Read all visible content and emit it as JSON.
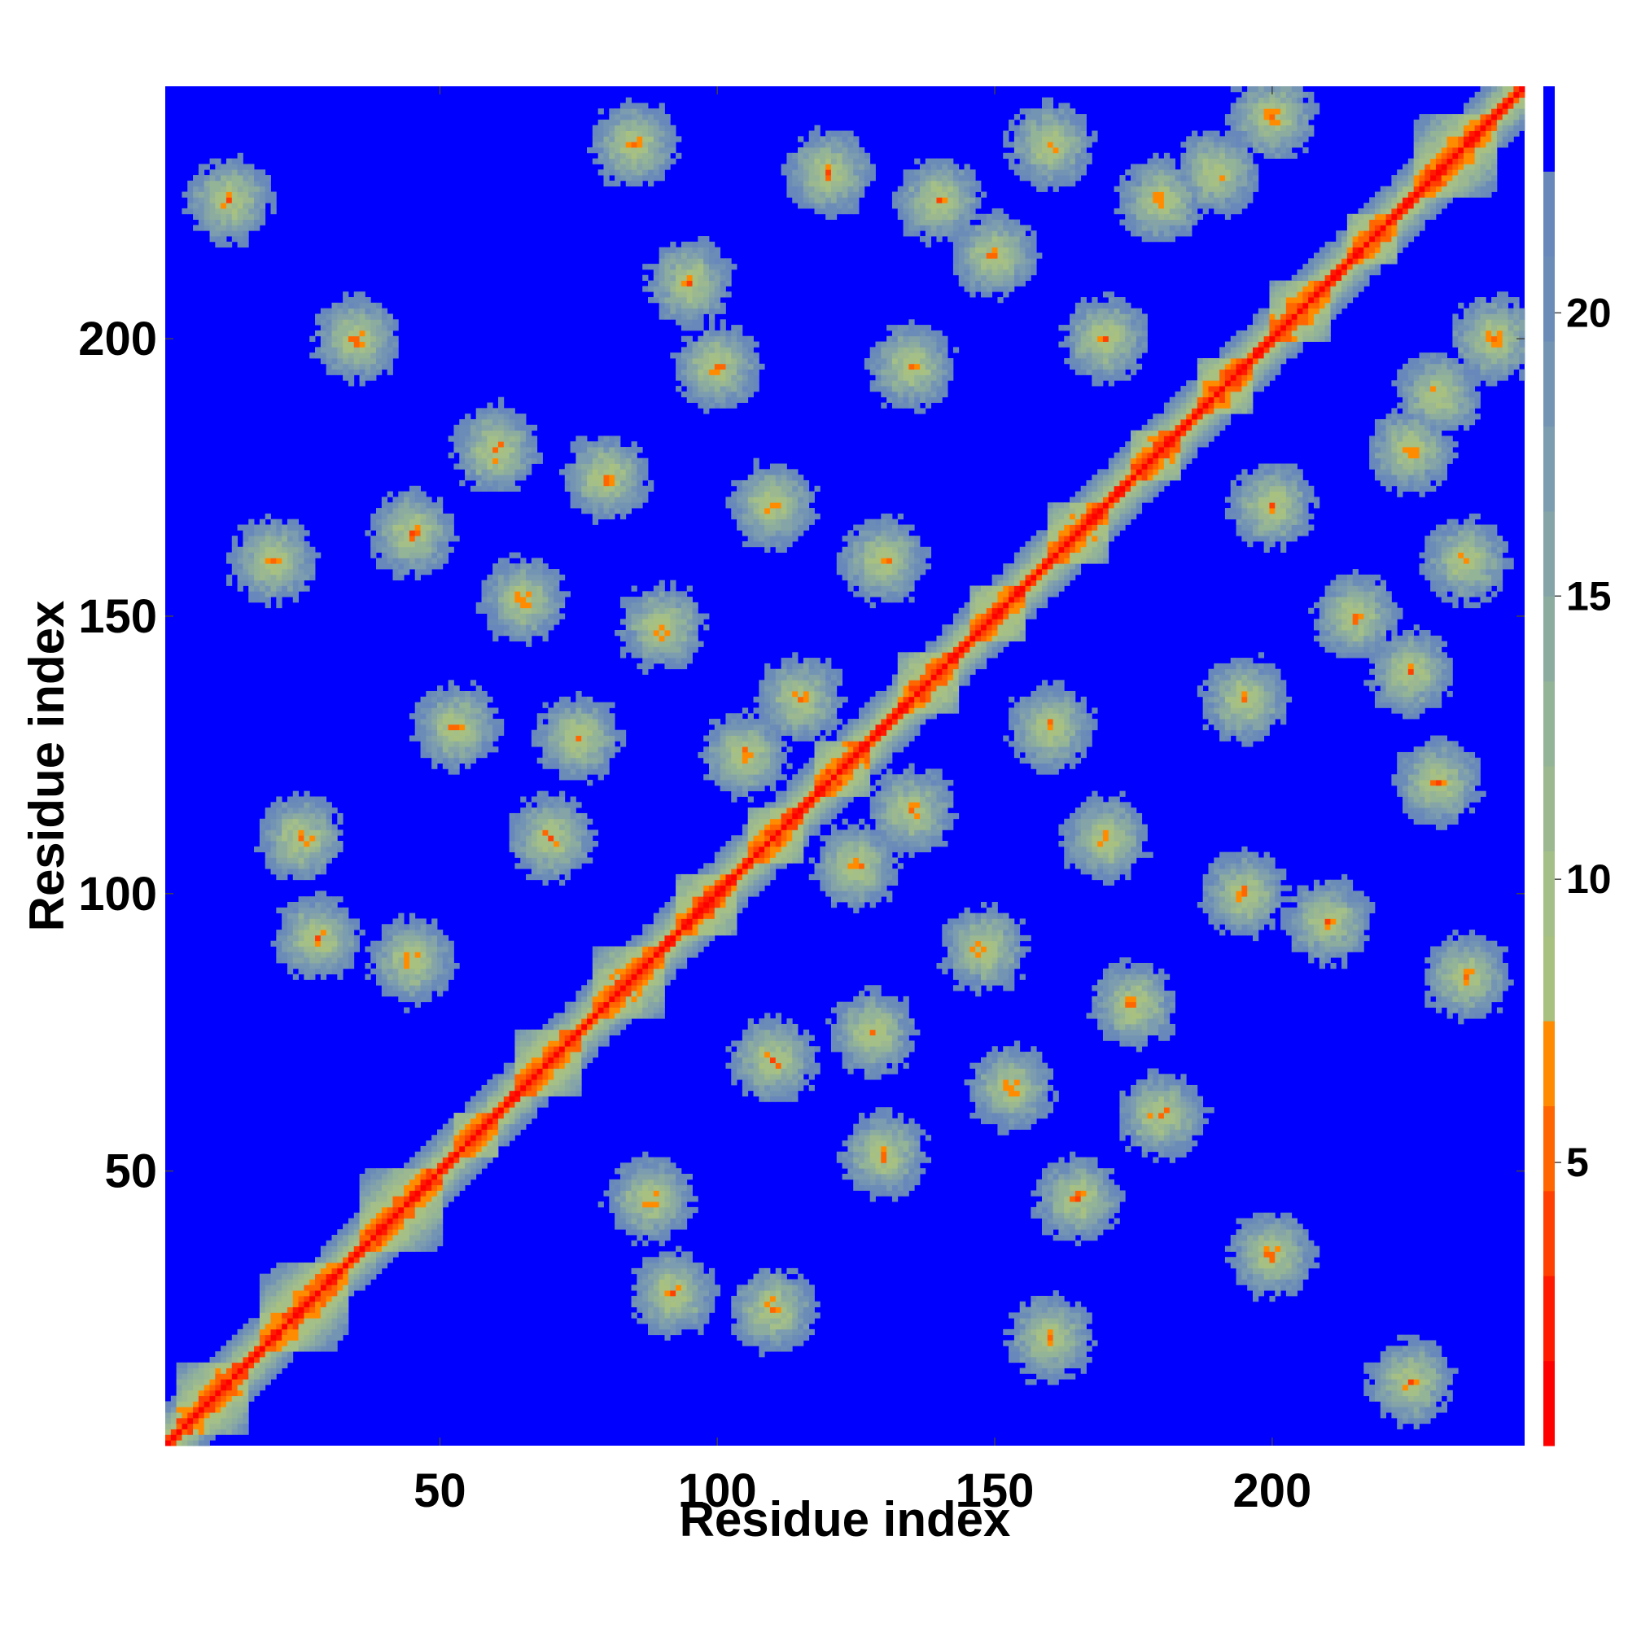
{
  "chart_data": {
    "type": "heatmap",
    "title": "",
    "xlabel": "Residue index",
    "ylabel": "Residue index",
    "n_residues": 245,
    "xlim": [
      1,
      245
    ],
    "ylim": [
      1,
      245
    ],
    "x_ticks": [
      50,
      100,
      150,
      200
    ],
    "y_ticks": [
      50,
      100,
      150,
      200
    ],
    "colorbar": {
      "ticks": [
        5,
        10,
        15,
        20
      ],
      "range": [
        0,
        24
      ],
      "levels": [
        {
          "min": 0,
          "max": 1.5,
          "color": "#ff0000"
        },
        {
          "min": 1.5,
          "max": 3,
          "color": "#ff1a00"
        },
        {
          "min": 3,
          "max": 4.5,
          "color": "#ff4000"
        },
        {
          "min": 4.5,
          "max": 6,
          "color": "#ff6600"
        },
        {
          "min": 6,
          "max": 7.5,
          "color": "#ff8c00"
        },
        {
          "min": 7.5,
          "max": 9,
          "color": "#a8c080"
        },
        {
          "min": 9,
          "max": 10.5,
          "color": "#a4c088"
        },
        {
          "min": 10.5,
          "max": 12,
          "color": "#9cb890"
        },
        {
          "min": 12,
          "max": 13.5,
          "color": "#94b498"
        },
        {
          "min": 13.5,
          "max": 15,
          "color": "#8caca0"
        },
        {
          "min": 15,
          "max": 16.5,
          "color": "#84a4a8"
        },
        {
          "min": 16.5,
          "max": 18,
          "color": "#7c9cb0"
        },
        {
          "min": 18,
          "max": 19.5,
          "color": "#7494b4"
        },
        {
          "min": 19.5,
          "max": 21,
          "color": "#6c8cb8"
        },
        {
          "min": 21,
          "max": 22.5,
          "color": "#6888bc"
        },
        {
          "min": 22.5,
          "max": 24,
          "color": "#0000ff"
        }
      ]
    },
    "grid": false,
    "background_color": "#0000ff",
    "contact_cutoff": 22.5,
    "structure": {
      "helices": [
        [
          3,
          15
        ],
        [
          18,
          33
        ],
        [
          36,
          50
        ],
        [
          53,
          60
        ],
        [
          64,
          75
        ],
        [
          78,
          90
        ],
        [
          93,
          103
        ],
        [
          106,
          115
        ],
        [
          118,
          127
        ],
        [
          133,
          143
        ],
        [
          146,
          155
        ],
        [
          160,
          170
        ],
        [
          175,
          183
        ],
        [
          187,
          196
        ],
        [
          200,
          210
        ],
        [
          214,
          222
        ],
        [
          226,
          240
        ]
      ],
      "contact_blobs": [
        {
          "i": 20,
          "j": 160,
          "d": 6
        },
        {
          "i": 28,
          "j": 92,
          "d": 7
        },
        {
          "i": 35,
          "j": 200,
          "d": 8
        },
        {
          "i": 45,
          "j": 88,
          "d": 8
        },
        {
          "i": 53,
          "j": 130,
          "d": 7
        },
        {
          "i": 60,
          "j": 180,
          "d": 7
        },
        {
          "i": 65,
          "j": 153,
          "d": 7
        },
        {
          "i": 75,
          "j": 128,
          "d": 7
        },
        {
          "i": 80,
          "j": 175,
          "d": 7
        },
        {
          "i": 90,
          "j": 148,
          "d": 7
        },
        {
          "i": 95,
          "j": 210,
          "d": 7
        },
        {
          "i": 105,
          "j": 125,
          "d": 6
        },
        {
          "i": 110,
          "j": 170,
          "d": 7
        },
        {
          "i": 115,
          "j": 135,
          "d": 6
        },
        {
          "i": 120,
          "j": 230,
          "d": 7
        },
        {
          "i": 130,
          "j": 160,
          "d": 7
        },
        {
          "i": 135,
          "j": 195,
          "d": 7
        },
        {
          "i": 140,
          "j": 225,
          "d": 7
        },
        {
          "i": 150,
          "j": 215,
          "d": 7
        },
        {
          "i": 160,
          "j": 235,
          "d": 7
        },
        {
          "i": 170,
          "j": 200,
          "d": 6
        },
        {
          "i": 180,
          "j": 225,
          "d": 7
        },
        {
          "i": 190,
          "j": 230,
          "d": 6
        },
        {
          "i": 200,
          "j": 240,
          "d": 6
        },
        {
          "i": 12,
          "j": 225,
          "d": 5
        },
        {
          "i": 25,
          "j": 110,
          "d": 7
        },
        {
          "i": 45,
          "j": 165,
          "d": 6
        },
        {
          "i": 70,
          "j": 110,
          "d": 6
        },
        {
          "i": 85,
          "j": 235,
          "d": 6
        },
        {
          "i": 100,
          "j": 195,
          "d": 6
        }
      ]
    }
  }
}
